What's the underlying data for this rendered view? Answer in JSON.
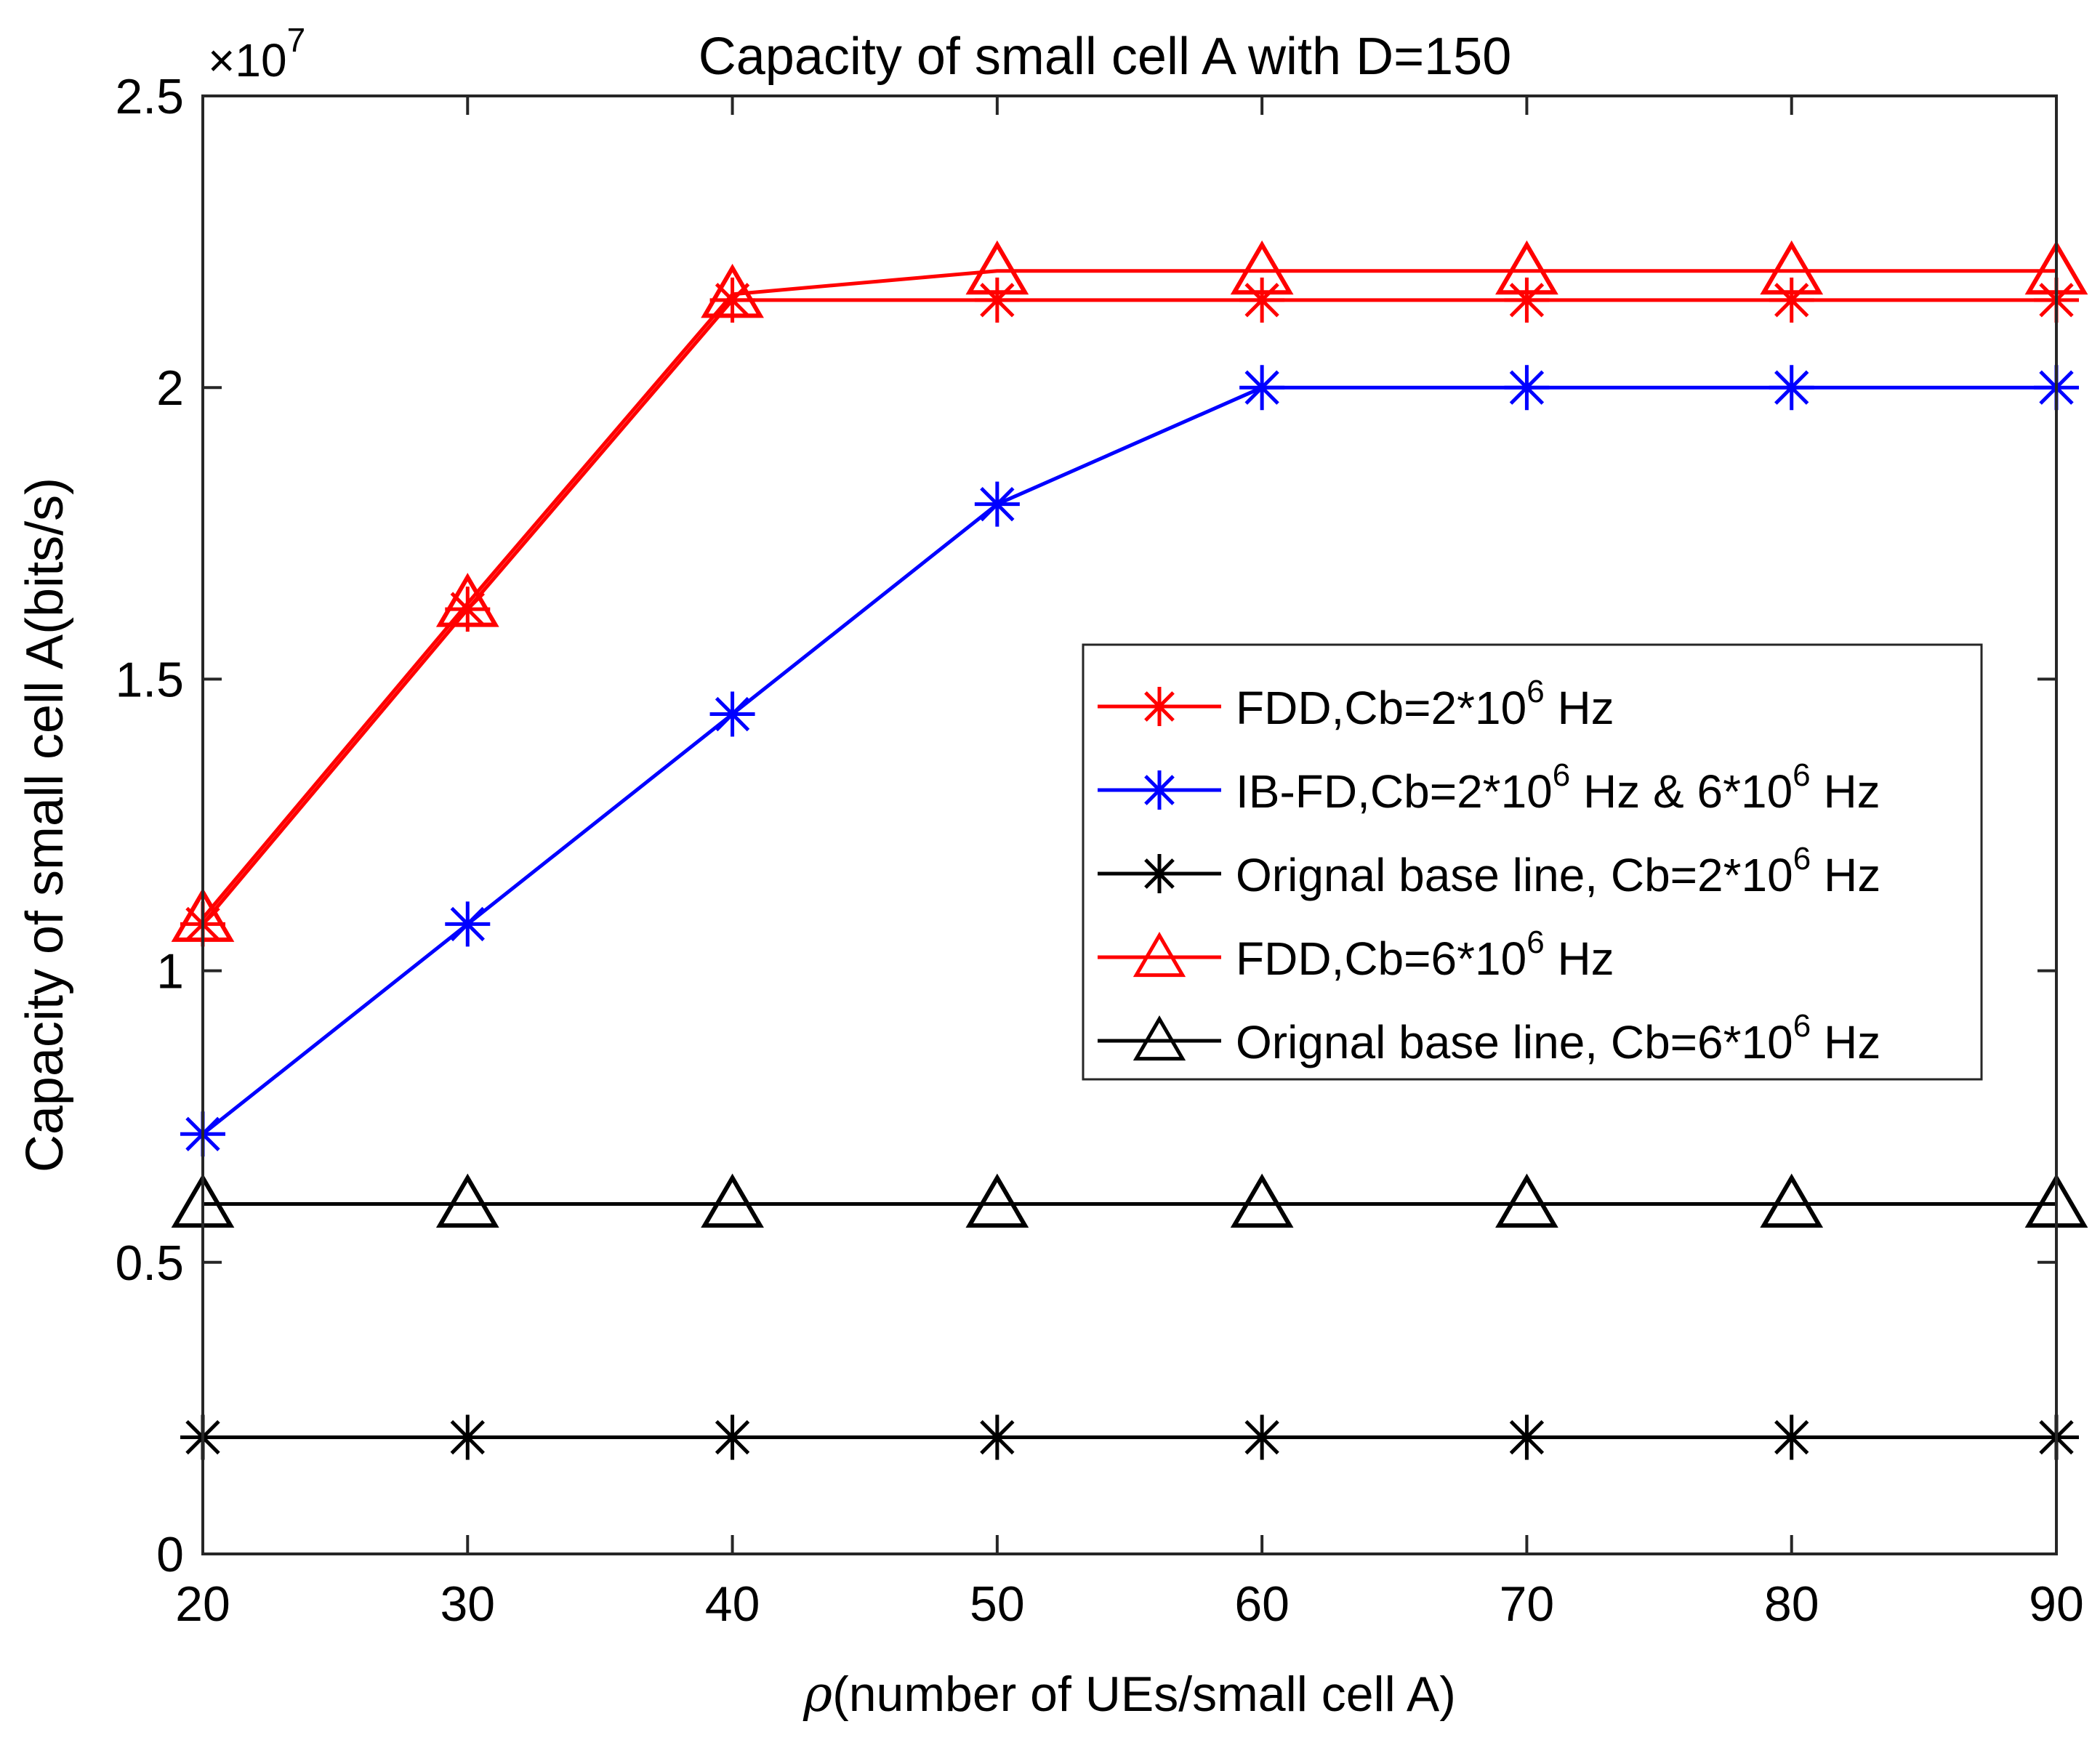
{
  "chart_data": {
    "type": "line",
    "title": "Capacity of small cell A with D=150",
    "xlabel_symbol": "ρ",
    "xlabel_text": "(number of UEs/small cell A)",
    "ylabel": "Capacity of small cell A(bits/s)",
    "y_exponent_base": "×10",
    "y_exponent_power": "7",
    "xlim": [
      20,
      90
    ],
    "ylim": [
      0,
      25000000.0
    ],
    "x_ticks": [
      20,
      30,
      40,
      50,
      60,
      70,
      80,
      90
    ],
    "x_tick_labels": [
      "20",
      "30",
      "40",
      "50",
      "60",
      "70",
      "80",
      "90"
    ],
    "y_ticks": [
      0,
      5000000,
      10000000,
      15000000,
      20000000,
      25000000
    ],
    "y_tick_labels": [
      "0",
      "0.5",
      "1",
      "1.5",
      "2",
      "2.5"
    ],
    "grid": false,
    "legend_position": "center-right",
    "x": [
      20,
      30,
      40,
      50,
      60,
      70,
      80,
      90
    ],
    "series": [
      {
        "name": "FDD,Cb=2*10^6 Hz",
        "legend_pre": "FDD,Cb=2*10",
        "legend_sup": "6",
        "legend_post": " Hz",
        "color": "#ff0000",
        "marker": "asterisk",
        "values": [
          10800000,
          16200000,
          21500000,
          21500000,
          21500000,
          21500000,
          21500000,
          21500000
        ]
      },
      {
        "name": "IB-FD,Cb=2*10^6 Hz & 6*10^6 Hz",
        "legend_pre": "IB-FD,Cb=2*10",
        "legend_sup": "6",
        "legend_mid": " Hz & 6*10",
        "legend_sup2": "6",
        "legend_post": " Hz",
        "color": "#0000ff",
        "marker": "asterisk",
        "values": [
          7200000,
          10800000,
          14400000,
          18000000,
          20000000,
          20000000,
          20000000,
          20000000
        ]
      },
      {
        "name": "Orignal base line, Cb=2*10^6 Hz",
        "legend_pre": "Orignal base line, Cb=2*10",
        "legend_sup": "6",
        "legend_post": " Hz",
        "color": "#000000",
        "marker": "asterisk",
        "values": [
          2000000,
          2000000,
          2000000,
          2000000,
          2000000,
          2000000,
          2000000,
          2000000
        ]
      },
      {
        "name": "FDD,Cb=6*10^6 Hz",
        "legend_pre": "FDD,Cb=6*10",
        "legend_sup": "6",
        "legend_post": " Hz",
        "color": "#ff0000",
        "marker": "triangle",
        "values": [
          10900000,
          16300000,
          21600000,
          22000000,
          22000000,
          22000000,
          22000000,
          22000000
        ]
      },
      {
        "name": "Orignal base line, Cb=6*10^6 Hz",
        "legend_pre": "Orignal base line, Cb=6*10",
        "legend_sup": "6",
        "legend_post": " Hz",
        "color": "#000000",
        "marker": "triangle",
        "values": [
          6000000,
          6000000,
          6000000,
          6000000,
          6000000,
          6000000,
          6000000,
          6000000
        ]
      }
    ]
  }
}
